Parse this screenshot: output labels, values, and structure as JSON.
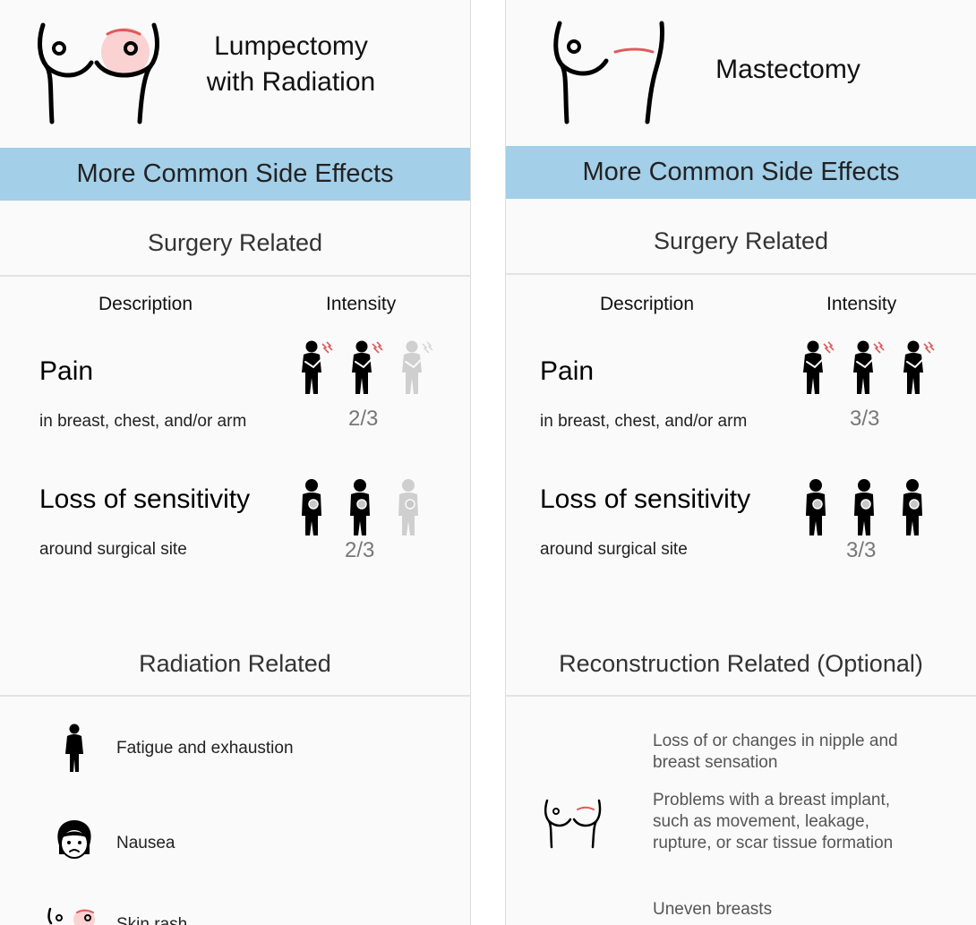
{
  "left": {
    "title_line1": "Lumpectomy",
    "title_line2": "with Radiation",
    "band": "More Common Side Effects",
    "surgery_section": "Surgery Related",
    "col_description": "Description",
    "col_intensity": "Intensity",
    "effects": [
      {
        "title": "Pain",
        "subtitle": "in breast, chest, and/or arm",
        "score": "2/3",
        "level": 2,
        "icon": "pain-person-icon"
      },
      {
        "title": "Loss of sensitivity",
        "subtitle": "around surgical site",
        "score": "2/3",
        "level": 2,
        "icon": "numb-person-icon"
      }
    ],
    "radiation_section": "Radiation Related",
    "radiation_items": [
      {
        "label": "Fatigue and exhaustion",
        "icon": "tired-person-icon"
      },
      {
        "label": "Nausea",
        "icon": "nauseous-face-icon"
      },
      {
        "label": "Skin rash",
        "icon": "skin-rash-icon"
      }
    ]
  },
  "right": {
    "title": "Mastectomy",
    "band": "More Common Side Effects",
    "surgery_section": "Surgery Related",
    "col_description": "Description",
    "col_intensity": "Intensity",
    "effects": [
      {
        "title": "Pain",
        "subtitle": "in breast, chest, and/or arm",
        "score": "3/3",
        "level": 3,
        "icon": "pain-person-icon"
      },
      {
        "title": "Loss of sensitivity",
        "subtitle": "around surgical site",
        "score": "3/3",
        "level": 3,
        "icon": "numb-person-icon"
      }
    ],
    "reconstruction_section": "Reconstruction Related (Optional)",
    "reconstruction_items": [
      "Loss of or changes in nipple and breast sensation",
      "Problems with a breast implant, such as movement, leakage, rupture, or scar tissue formation",
      "Uneven breasts"
    ]
  },
  "colors": {
    "band": "#a3cfe8",
    "active_icon": "#000000",
    "inactive_icon": "#cfcfcf",
    "accent_red": "#e05a5a",
    "lump_fill": "#fbd2d2"
  }
}
